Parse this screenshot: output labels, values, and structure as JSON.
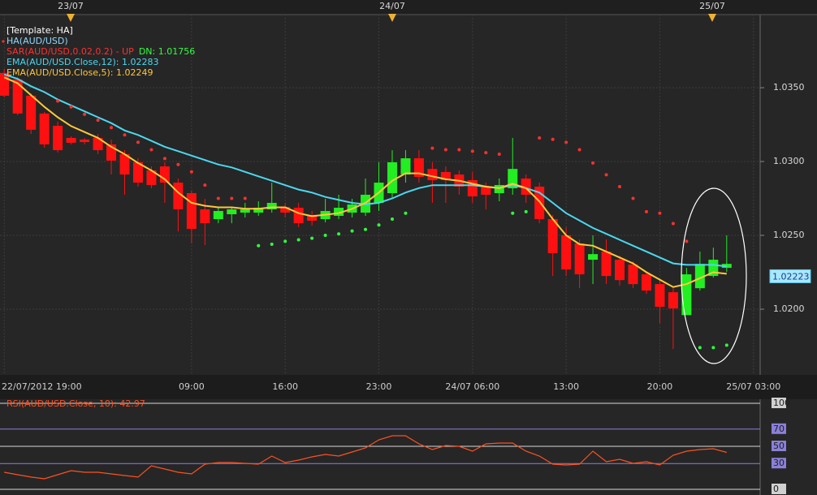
{
  "chart_data": [
    {
      "type": "candlestick",
      "top_labels": [
        "23/07",
        "24/07",
        "25/07"
      ],
      "legend": [
        [
          {
            "text": "[Template: HA]",
            "color": "#ffffff"
          }
        ],
        [
          {
            "text": "HA(AUD/USD)",
            "color": "#8fd8ff"
          }
        ],
        [
          {
            "text": "SAR(AUD/USD,0.02,0.2) -  UP",
            "color": "#ff3030"
          },
          {
            "text": "DN: 1.01756",
            "color": "#30ff40"
          }
        ],
        [
          {
            "text": "EMA(AUD/USD.Close,12): 1.02283",
            "color": "#4ad8f0"
          }
        ],
        [
          {
            "text": "EMA(AUD/USD.Close,5): 1.02249",
            "color": "#ffc83a"
          }
        ]
      ],
      "categories": [
        "22/07/2012 19:00",
        null,
        null,
        null,
        null,
        null,
        null,
        null,
        null,
        null,
        null,
        null,
        null,
        null,
        "09:00",
        null,
        null,
        null,
        null,
        null,
        null,
        "16:00",
        null,
        null,
        null,
        null,
        null,
        null,
        "23:00",
        null,
        null,
        null,
        null,
        null,
        null,
        "24/07 06:00",
        null,
        null,
        null,
        null,
        null,
        null,
        "13:00",
        null,
        null,
        null,
        null,
        null,
        null,
        "20:00",
        null,
        null,
        null,
        null,
        null,
        null,
        "25/07 03:00"
      ],
      "open": [
        1.036,
        1.03556,
        1.03446,
        1.03325,
        1.03242,
        1.0316,
        1.03149,
        1.0316,
        1.03116,
        1.0305,
        1.02995,
        1.0294,
        1.02967,
        1.02857,
        1.02786,
        1.02676,
        1.0261,
        1.02643,
        1.02654,
        1.02654,
        1.02676,
        1.02692,
        1.02687,
        1.02637,
        1.0261,
        1.02632,
        1.02654,
        1.02654,
        1.0272,
        1.02786,
        1.02912,
        1.03022,
        1.0295,
        1.02929,
        1.02912,
        1.02874,
        1.0283,
        1.02786,
        1.02819,
        1.02885,
        1.0283,
        1.0261,
        1.025,
        1.02445,
        1.02335,
        1.0239,
        1.02335,
        1.02302,
        1.02236,
        1.0217,
        1.02115,
        1.0196,
        1.02142,
        1.02225,
        1.0228,
        null,
        null
      ],
      "high": [
        1.03627,
        1.03572,
        1.03462,
        1.03336,
        1.0327,
        1.03171,
        1.0316,
        1.03187,
        1.03149,
        1.03077,
        1.03022,
        1.02967,
        1.02995,
        1.02885,
        1.02802,
        1.02747,
        1.02692,
        1.02692,
        1.0272,
        1.02731,
        1.02857,
        1.0272,
        1.0272,
        1.02665,
        1.02747,
        1.02775,
        1.02747,
        1.02885,
        1.02995,
        1.03077,
        1.03077,
        1.03077,
        1.02995,
        1.02967,
        1.0294,
        1.02929,
        1.02857,
        1.02885,
        1.0316,
        1.02912,
        1.02857,
        1.02637,
        1.02555,
        1.02472,
        1.025,
        1.02472,
        1.02362,
        1.02324,
        1.02252,
        1.02197,
        1.02142,
        1.0228,
        1.0239,
        1.02417,
        1.025,
        null,
        null
      ],
      "low": [
        1.03435,
        1.03314,
        1.03187,
        1.03094,
        1.03061,
        1.03116,
        1.03116,
        1.0305,
        1.02912,
        1.02775,
        1.0283,
        1.02819,
        1.0272,
        1.02527,
        1.02445,
        1.02434,
        1.02582,
        1.02582,
        1.02621,
        1.02632,
        1.02654,
        1.02621,
        1.02555,
        1.02566,
        1.02588,
        1.0261,
        1.02621,
        1.02632,
        1.02665,
        1.02747,
        1.02857,
        1.02857,
        1.0272,
        1.0272,
        1.02775,
        1.0272,
        1.02676,
        1.02731,
        1.02775,
        1.0272,
        1.02582,
        1.02225,
        1.02225,
        1.02142,
        1.0217,
        1.0217,
        1.02159,
        1.02142,
        1.02104,
        1.01906,
        1.0173,
        1.0196,
        1.02126,
        1.02214,
        1.02252,
        null,
        null
      ],
      "close": [
        1.03446,
        1.03325,
        1.03215,
        1.03116,
        1.03077,
        1.03127,
        1.03132,
        1.03077,
        1.03006,
        1.02912,
        1.02857,
        1.02841,
        1.02857,
        1.02676,
        1.02544,
        1.02582,
        1.02665,
        1.02676,
        1.02676,
        1.02687,
        1.0272,
        1.02654,
        1.02582,
        1.02599,
        1.02665,
        1.02687,
        1.02709,
        1.02775,
        1.02857,
        1.02995,
        1.03022,
        1.02896,
        1.02874,
        1.02874,
        1.0283,
        1.02764,
        1.02775,
        1.02841,
        1.0295,
        1.02775,
        1.0261,
        1.02379,
        1.02269,
        1.02236,
        1.02373,
        1.02225,
        1.02197,
        1.0217,
        1.02126,
        1.02016,
        1.02005,
        1.02236,
        1.02307,
        1.02335,
        1.02307,
        null,
        null
      ],
      "up_color": "#22ee22",
      "down_color": "#ff1010",
      "overlays": [
        {
          "color": "#4ad8f0",
          "values": [
            1.0359,
            1.0356,
            1.0351,
            1.0347,
            1.0342,
            1.0338,
            1.0334,
            1.033,
            1.0326,
            1.0321,
            1.0318,
            1.0314,
            1.031,
            1.0307,
            1.0304,
            1.0301,
            1.0298,
            1.0296,
            1.0293,
            1.029,
            1.0287,
            1.0284,
            1.0281,
            1.0279,
            1.0276,
            1.0274,
            1.0272,
            1.0271,
            1.0272,
            1.0275,
            1.0279,
            1.0282,
            1.0284,
            1.0284,
            1.0284,
            1.0284,
            1.0283,
            1.0282,
            1.0284,
            1.0282,
            1.0279,
            1.0272,
            1.0265,
            1.026,
            1.0255,
            1.0251,
            1.0247,
            1.0243,
            1.0239,
            1.0235,
            1.0231,
            1.023,
            1.023,
            1.023,
            1.0229,
            null,
            null
          ]
        },
        {
          "color": "#ffc83a",
          "values": [
            1.0357,
            1.0353,
            1.0345,
            1.0337,
            1.033,
            1.0324,
            1.032,
            1.0316,
            1.031,
            1.0305,
            1.0299,
            1.0294,
            1.0288,
            1.0279,
            1.0272,
            1.027,
            1.0269,
            1.0269,
            1.0268,
            1.0268,
            1.0269,
            1.0269,
            1.0265,
            1.0263,
            1.0264,
            1.0265,
            1.0268,
            1.0272,
            1.0279,
            1.0287,
            1.0292,
            1.0292,
            1.029,
            1.0288,
            1.0287,
            1.0285,
            1.0283,
            1.0282,
            1.0285,
            1.0282,
            1.0273,
            1.0261,
            1.025,
            1.0244,
            1.0243,
            1.0239,
            1.0235,
            1.0231,
            1.0225,
            1.022,
            1.0215,
            1.0217,
            1.0221,
            1.0225,
            1.0224,
            null,
            null
          ]
        }
      ],
      "sar": {
        "up_color": "#30ff40",
        "down_color": "#ff3030",
        "values": [
          null,
          null,
          null,
          null,
          1.0341,
          1.0337,
          1.0332,
          1.0328,
          1.0323,
          1.0318,
          1.0313,
          1.0308,
          1.0302,
          1.0298,
          1.0293,
          1.0284,
          1.0275,
          1.0275,
          1.0275,
          1.0243,
          1.0244,
          1.0246,
          1.0247,
          1.0248,
          1.025,
          1.0251,
          1.0253,
          1.0254,
          1.0257,
          1.0261,
          1.0265,
          null,
          1.0309,
          1.0308,
          1.0308,
          1.0307,
          1.0306,
          1.0305,
          1.0265,
          1.0266,
          1.0316,
          1.0315,
          1.0313,
          1.0308,
          1.0299,
          1.0291,
          1.0283,
          1.0275,
          1.0266,
          1.0265,
          1.0258,
          1.0246,
          1.0174,
          1.0174,
          1.01756,
          null,
          null
        ]
      },
      "ylim": [
        1.01555,
        1.03995
      ],
      "yticks": [
        {
          "value": 1.035,
          "label": "1.0350"
        },
        {
          "value": 1.03,
          "label": "1.0300"
        },
        {
          "value": 1.025,
          "label": "1.0250"
        },
        {
          "value": 1.02,
          "label": "1.0200"
        }
      ],
      "last_price": 1.02223,
      "grid": true
    },
    {
      "type": "line",
      "title": "RSI(AUD/USD.Close, 10): 42.97",
      "color": "#ff5020",
      "values": [
        19.8,
        17.0,
        14.2,
        12.3,
        17.0,
        21.7,
        19.8,
        19.8,
        17.9,
        16.0,
        14.2,
        27.4,
        23.6,
        19.8,
        17.9,
        29.2,
        31.1,
        31.1,
        30.2,
        29.2,
        38.7,
        31.1,
        34.0,
        37.7,
        40.6,
        38.7,
        43.4,
        48.1,
        57.5,
        62.3,
        62.3,
        52.8,
        46.2,
        50.9,
        50.0,
        44.3,
        52.8,
        53.8,
        53.8,
        44.3,
        38.7,
        29.2,
        28.3,
        29.2,
        44.3,
        32.1,
        34.9,
        30.2,
        32.1,
        28.3,
        39.6,
        44.3,
        46.2,
        47.2,
        42.97,
        null,
        null
      ],
      "ylim": [
        0,
        100
      ],
      "yticks": [
        100,
        70,
        50,
        30,
        0
      ],
      "tick_colors": [
        "#d8d8d8",
        "#8a80d8",
        "#d8d8d8",
        "#8a80d8",
        "#d8d8d8"
      ],
      "label_colors": [
        "#d0d0d0",
        "#8a80d8",
        "#8a80d8",
        "#8a80d8",
        "#d0d0d0"
      ]
    }
  ]
}
